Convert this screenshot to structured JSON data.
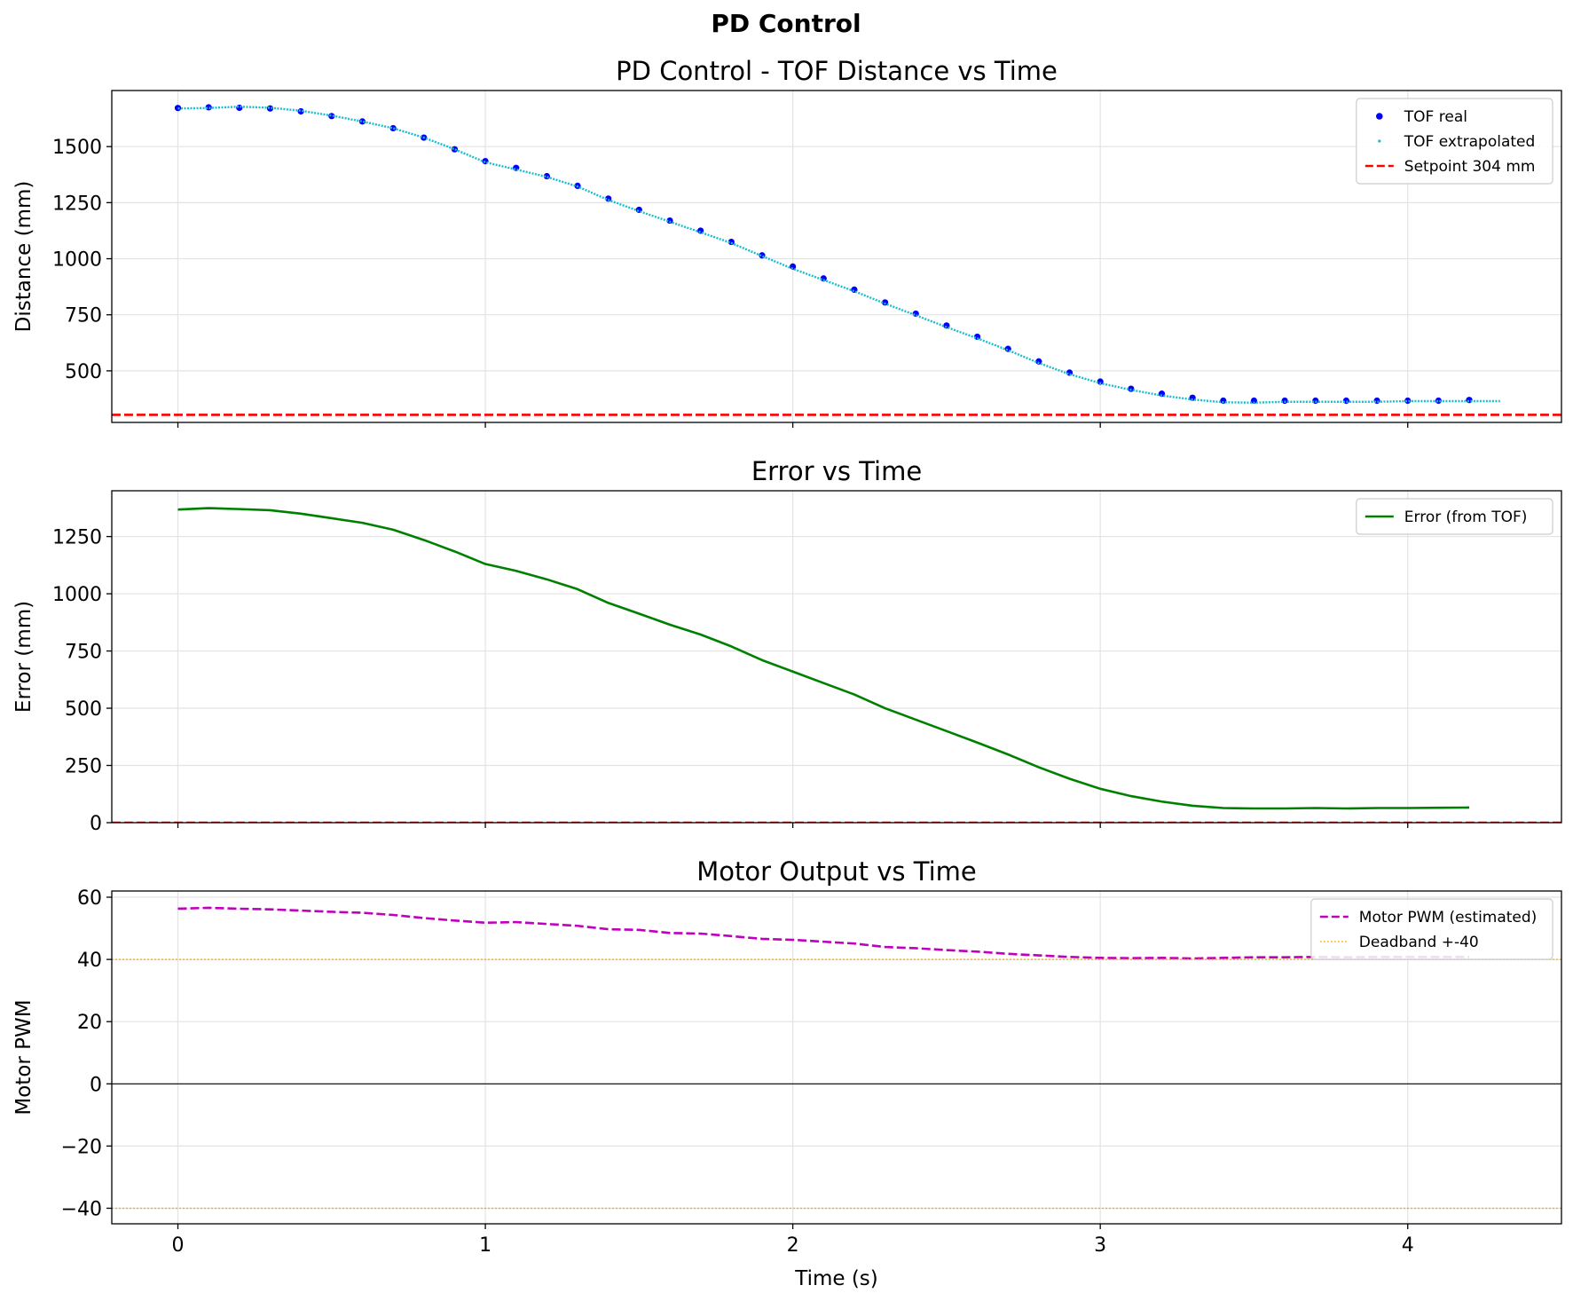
{
  "figure_title": "PD Control",
  "chart_data": [
    {
      "type": "scatter",
      "title": "PD Control - TOF Distance vs Time",
      "xlabel": "",
      "ylabel": "Distance (mm)",
      "xlim": [
        -0.215,
        4.5
      ],
      "ylim": [
        270,
        1750
      ],
      "xticks": [
        0,
        1,
        2,
        3,
        4
      ],
      "xtick_labels": [
        "",
        "",
        "",
        "",
        ""
      ],
      "yticks": [
        500,
        750,
        1000,
        1250,
        1500
      ],
      "ytick_labels": [
        "500",
        "750",
        "1000",
        "1250",
        "1500"
      ],
      "grid": true,
      "legend_position": "top-right",
      "series": [
        {
          "name": "TOF real",
          "style": "dot-marker",
          "color": "#0000ff",
          "x": [
            0,
            0.1,
            0.2,
            0.3,
            0.4,
            0.5,
            0.6,
            0.7,
            0.8,
            0.9,
            1.0,
            1.1,
            1.2,
            1.3,
            1.4,
            1.5,
            1.6,
            1.7,
            1.8,
            1.9,
            2.0,
            2.1,
            2.2,
            2.3,
            2.4,
            2.5,
            2.6,
            2.7,
            2.8,
            2.9,
            3.0,
            3.1,
            3.2,
            3.3,
            3.4,
            3.5,
            3.6,
            3.7,
            3.8,
            3.9,
            4.0,
            4.1,
            4.2
          ],
          "y": [
            1672,
            1675,
            1673,
            1670,
            1657,
            1636,
            1612,
            1582,
            1540,
            1488,
            1435,
            1405,
            1368,
            1325,
            1268,
            1218,
            1170,
            1125,
            1075,
            1015,
            965,
            912,
            862,
            805,
            755,
            702,
            652,
            598,
            542,
            492,
            452,
            420,
            398,
            380,
            367,
            367,
            367,
            367,
            367,
            367,
            367,
            367,
            370
          ]
        },
        {
          "name": "TOF extrapolated",
          "style": "small-point",
          "color": "#17becf",
          "x": [
            0,
            0.1,
            0.2,
            0.3,
            0.4,
            0.5,
            0.6,
            0.7,
            0.8,
            0.9,
            1.0,
            1.1,
            1.2,
            1.3,
            1.4,
            1.5,
            1.6,
            1.7,
            1.8,
            1.9,
            2.0,
            2.1,
            2.2,
            2.3,
            2.4,
            2.5,
            2.6,
            2.7,
            2.8,
            2.9,
            3.0,
            3.1,
            3.2,
            3.3,
            3.4,
            3.5,
            3.6,
            3.7,
            3.8,
            3.9,
            4.0,
            4.1,
            4.2,
            4.3
          ],
          "y": [
            1670,
            1672,
            1678,
            1673,
            1660,
            1638,
            1612,
            1582,
            1540,
            1488,
            1430,
            1398,
            1365,
            1322,
            1262,
            1212,
            1165,
            1118,
            1070,
            1012,
            955,
            905,
            855,
            800,
            748,
            695,
            645,
            592,
            535,
            485,
            445,
            415,
            390,
            372,
            360,
            358,
            362,
            362,
            362,
            362,
            365,
            365,
            365,
            365
          ]
        },
        {
          "name": "Setpoint 304 mm",
          "style": "hline-dashed",
          "color": "#ff0000",
          "y": 304
        }
      ]
    },
    {
      "type": "line",
      "title": "Error vs Time",
      "xlabel": "",
      "ylabel": "Error (mm)",
      "xlim": [
        -0.215,
        4.5
      ],
      "ylim": [
        0,
        1450
      ],
      "xticks": [
        0,
        1,
        2,
        3,
        4
      ],
      "xtick_labels": [
        "",
        "",
        "",
        "",
        ""
      ],
      "yticks": [
        0,
        250,
        500,
        750,
        1000,
        1250
      ],
      "ytick_labels": [
        "0",
        "250",
        "500",
        "750",
        "1000",
        "1250"
      ],
      "grid": true,
      "legend_position": "top-right",
      "series": [
        {
          "name": "Error (from TOF)",
          "style": "solid",
          "color": "#008000",
          "x": [
            0,
            0.1,
            0.2,
            0.3,
            0.4,
            0.5,
            0.6,
            0.7,
            0.8,
            0.9,
            1.0,
            1.1,
            1.2,
            1.3,
            1.4,
            1.5,
            1.6,
            1.7,
            1.8,
            1.9,
            2.0,
            2.1,
            2.2,
            2.3,
            2.4,
            2.5,
            2.6,
            2.7,
            2.8,
            2.9,
            3.0,
            3.1,
            3.2,
            3.3,
            3.4,
            3.5,
            3.6,
            3.7,
            3.8,
            3.9,
            4.0,
            4.1,
            4.2
          ],
          "y": [
            1368,
            1374,
            1370,
            1365,
            1350,
            1330,
            1310,
            1280,
            1235,
            1185,
            1130,
            1100,
            1063,
            1020,
            960,
            913,
            865,
            822,
            770,
            710,
            660,
            610,
            560,
            500,
            450,
            400,
            350,
            298,
            242,
            192,
            148,
            116,
            92,
            74,
            64,
            62,
            62,
            64,
            62,
            64,
            64,
            65,
            66
          ]
        },
        {
          "name": "",
          "style": "hline-dashed",
          "color": "#ff0000",
          "y": 0
        }
      ]
    },
    {
      "type": "line",
      "title": "Motor Output vs Time",
      "xlabel": "Time (s)",
      "ylabel": "Motor PWM",
      "xlim": [
        -0.215,
        4.5
      ],
      "ylim": [
        -45,
        62
      ],
      "xticks": [
        0,
        1,
        2,
        3,
        4
      ],
      "xtick_labels": [
        "0",
        "1",
        "2",
        "3",
        "4"
      ],
      "yticks": [
        -40,
        -20,
        0,
        20,
        40,
        60
      ],
      "ytick_labels": [
        "−40",
        "−20",
        "0",
        "20",
        "40",
        "60"
      ],
      "grid": true,
      "legend_position": "top-right",
      "series": [
        {
          "name": "Motor PWM (estimated)",
          "style": "dashed",
          "color": "#bf00bf",
          "x": [
            0,
            0.1,
            0.2,
            0.3,
            0.4,
            0.5,
            0.6,
            0.7,
            0.8,
            0.9,
            1.0,
            1.1,
            1.2,
            1.3,
            1.4,
            1.5,
            1.6,
            1.7,
            1.8,
            1.9,
            2.0,
            2.1,
            2.2,
            2.3,
            2.4,
            2.5,
            2.6,
            2.7,
            2.8,
            2.9,
            3.0,
            3.1,
            3.2,
            3.3,
            3.4,
            3.5,
            3.6,
            3.7,
            3.8,
            3.9,
            4.0,
            4.1,
            4.2
          ],
          "y": [
            56.3,
            56.6,
            56.3,
            56.1,
            55.7,
            55.3,
            55.0,
            54.3,
            53.3,
            52.5,
            51.8,
            52.0,
            51.4,
            50.8,
            49.7,
            49.5,
            48.5,
            48.3,
            47.5,
            46.6,
            46.3,
            45.7,
            45.1,
            44.0,
            43.6,
            43.0,
            42.5,
            41.8,
            41.3,
            40.8,
            40.5,
            40.4,
            40.5,
            40.3,
            40.5,
            40.7,
            40.7,
            40.8,
            40.7,
            40.8,
            40.8,
            40.8,
            40.8
          ]
        },
        {
          "name": "Deadband +-40",
          "style": "hline-dotted",
          "color": "#ffa500",
          "y": 40
        },
        {
          "name": "",
          "style": "hline-dotted",
          "color": "#ffa500",
          "y": -40
        },
        {
          "name": "",
          "style": "hline-solid-thin",
          "color": "#000000",
          "y": 0
        }
      ]
    }
  ]
}
